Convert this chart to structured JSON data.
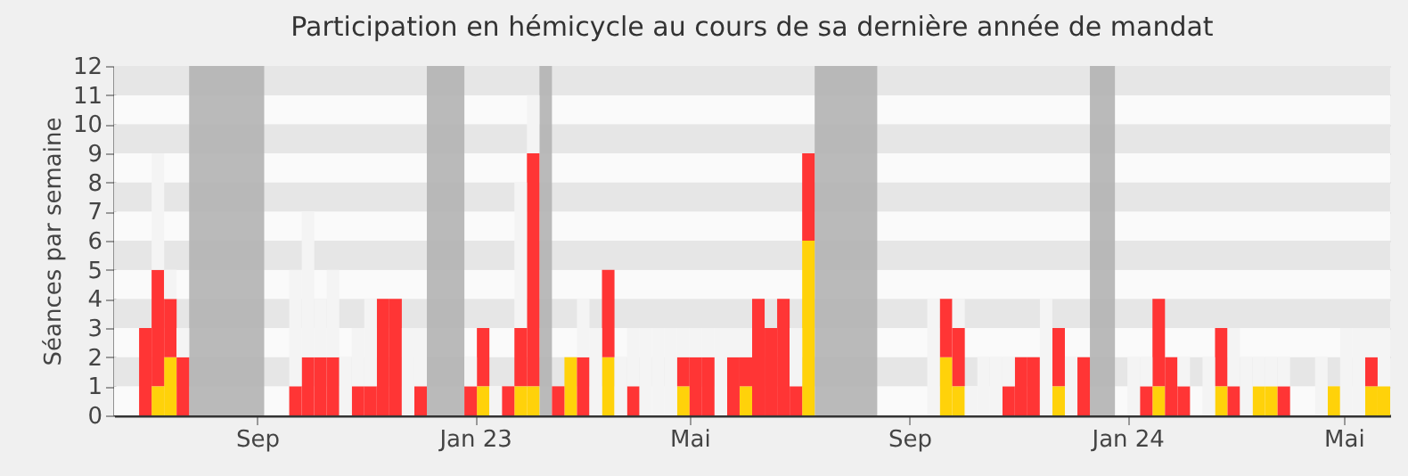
{
  "chart_data": {
    "type": "bar",
    "stacked": true,
    "title": "Participation en hémicycle au cours de sa dernière année de mandat",
    "ylabel": "Séances par semaine",
    "x": [
      "2022-06-27",
      "2022-07-04",
      "2022-07-11",
      "2022-07-18",
      "2022-09-19",
      "2022-09-26",
      "2022-10-03",
      "2022-10-10",
      "2022-10-17",
      "2022-10-24",
      "2022-10-31",
      "2022-11-07",
      "2022-11-14",
      "2022-11-21",
      "2022-11-28",
      "2022-12-26",
      "2023-01-02",
      "2023-01-09",
      "2023-01-16",
      "2023-01-23",
      "2023-01-30",
      "2023-02-13",
      "2023-02-20",
      "2023-02-27",
      "2023-03-06",
      "2023-03-13",
      "2023-03-20",
      "2023-03-27",
      "2023-04-03",
      "2023-04-10",
      "2023-04-17",
      "2023-04-24",
      "2023-05-01",
      "2023-05-08",
      "2023-05-15",
      "2023-05-22",
      "2023-05-29",
      "2023-06-05",
      "2023-06-12",
      "2023-06-19",
      "2023-06-26",
      "2023-07-03",
      "2023-09-11",
      "2023-09-18",
      "2023-09-25",
      "2023-10-02",
      "2023-10-09",
      "2023-10-16",
      "2023-10-23",
      "2023-10-30",
      "2023-11-06",
      "2023-11-13",
      "2023-11-20",
      "2023-11-27",
      "2023-12-04",
      "2024-01-01",
      "2024-01-08",
      "2024-01-15",
      "2024-01-22",
      "2024-01-29",
      "2024-02-12",
      "2024-02-19",
      "2024-02-26",
      "2024-03-04",
      "2024-03-11",
      "2024-03-18",
      "2024-03-25",
      "2024-04-15",
      "2024-04-22",
      "2024-04-29",
      "2024-05-06",
      "2024-05-13",
      "2024-05-20"
    ],
    "series": [
      {
        "color": "#ffd20a",
        "values": [
          null,
          1,
          2,
          null,
          null,
          null,
          null,
          null,
          null,
          null,
          null,
          null,
          null,
          null,
          null,
          null,
          1,
          null,
          null,
          1,
          1,
          null,
          2,
          null,
          null,
          2,
          null,
          null,
          null,
          null,
          null,
          1,
          null,
          null,
          null,
          null,
          1,
          null,
          null,
          null,
          null,
          6,
          null,
          2,
          1,
          null,
          null,
          null,
          null,
          null,
          null,
          null,
          1,
          null,
          null,
          null,
          null,
          1,
          null,
          null,
          null,
          1,
          null,
          null,
          1,
          1,
          null,
          null,
          1,
          null,
          null,
          1,
          1
        ]
      },
      {
        "color": "#ff3535",
        "values": [
          3,
          4,
          2,
          2,
          1,
          2,
          2,
          2,
          null,
          1,
          1,
          4,
          4,
          null,
          1,
          1,
          2,
          null,
          1,
          2,
          8,
          1,
          null,
          2,
          null,
          3,
          null,
          1,
          null,
          null,
          null,
          1,
          2,
          2,
          null,
          2,
          1,
          4,
          3,
          4,
          1,
          3,
          null,
          2,
          2,
          null,
          null,
          null,
          1,
          2,
          2,
          null,
          2,
          null,
          2,
          null,
          1,
          3,
          2,
          1,
          null,
          2,
          1,
          null,
          null,
          null,
          1,
          null,
          null,
          null,
          null,
          1,
          null
        ]
      },
      {
        "color": "#f4f4f4",
        "values": [
          null,
          4,
          1,
          1,
          4,
          5,
          2,
          3,
          2,
          2,
          3,
          null,
          null,
          3,
          2,
          1,
          null,
          1,
          null,
          5,
          2,
          null,
          null,
          2,
          3,
          null,
          2,
          2,
          3,
          3,
          3,
          1,
          1,
          1,
          3,
          1,
          1,
          null,
          null,
          null,
          2,
          null,
          4,
          null,
          1,
          1,
          2,
          2,
          1,
          null,
          null,
          4,
          null,
          2,
          null,
          2,
          1,
          null,
          null,
          1,
          2,
          null,
          2,
          2,
          1,
          1,
          1,
          2,
          null,
          3,
          3,
          1,
          2
        ]
      }
    ],
    "xlim": [
      "2022-06-13",
      "2024-05-27"
    ],
    "xticks": [
      {
        "value": "2022-09-01",
        "label": "Sep"
      },
      {
        "value": "2023-01-01",
        "label": "Jan 23"
      },
      {
        "value": "2023-05-01",
        "label": "Mai"
      },
      {
        "value": "2023-09-01",
        "label": "Sep"
      },
      {
        "value": "2024-01-01",
        "label": "Jan 24"
      },
      {
        "value": "2024-05-01",
        "label": "Mai"
      }
    ],
    "ylim": [
      0,
      12
    ],
    "yticks": [
      0,
      1,
      2,
      3,
      4,
      5,
      6,
      7,
      8,
      9,
      10,
      11,
      12
    ],
    "grid": "y",
    "bands": [
      {
        "axis": "x",
        "from": "2022-07-25",
        "to": "2022-09-05",
        "color": "#b3b3b3"
      },
      {
        "axis": "x",
        "from": "2022-12-05",
        "to": "2022-12-26",
        "color": "#b3b3b3"
      },
      {
        "axis": "x",
        "from": "2023-02-06",
        "to": "2023-02-13",
        "color": "#b3b3b3"
      },
      {
        "axis": "x",
        "from": "2023-07-10",
        "to": "2023-08-14",
        "color": "#b3b3b3"
      },
      {
        "axis": "x",
        "from": "2023-12-11",
        "to": "2023-12-25",
        "color": "#b3b3b3"
      }
    ]
  }
}
